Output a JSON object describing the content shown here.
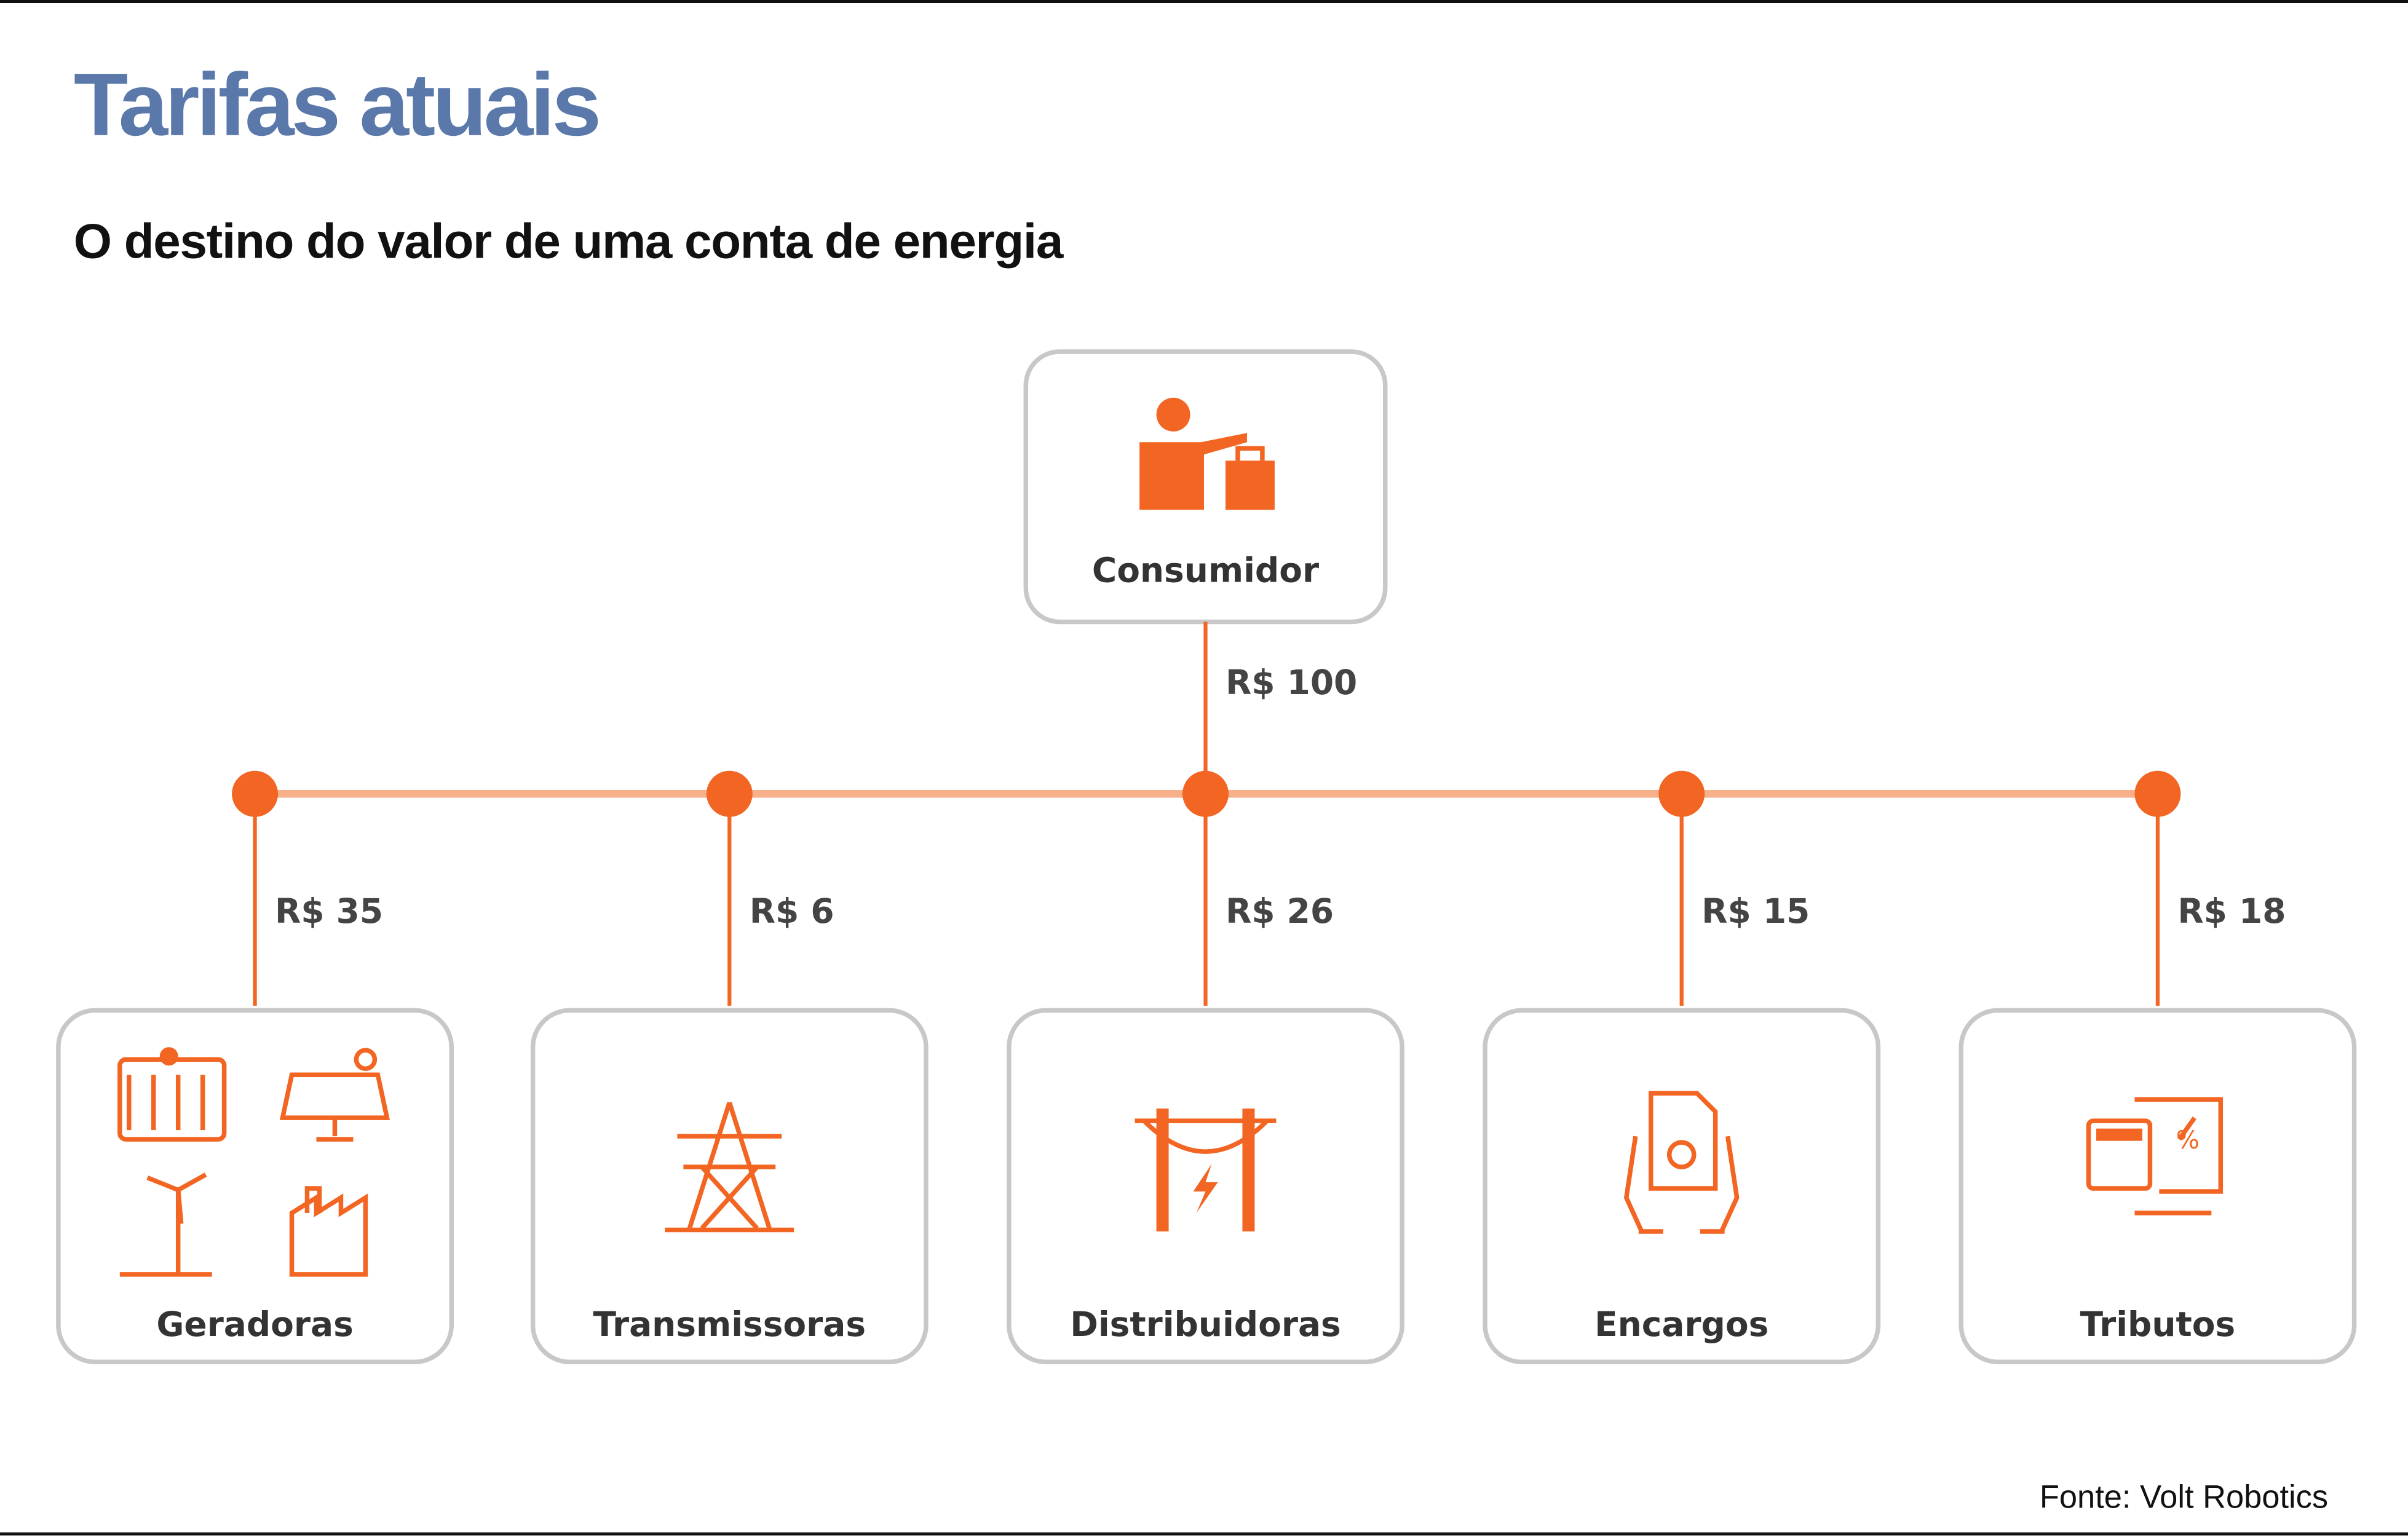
{
  "title": "Tarifas atuais",
  "subtitle": "O destino do valor de uma conta de energia",
  "accent_color": "#f26522",
  "title_color": "#5a78aa",
  "root": {
    "label": "Consumidor",
    "icon": "person-with-shopping-bag-icon",
    "amount": "R$ 100"
  },
  "destinations": [
    {
      "label": "Geradoras",
      "amount": "R$ 35",
      "icon": "power-generation-icons"
    },
    {
      "label": "Transmissoras",
      "amount": "R$ 6",
      "icon": "transmission-tower-icon"
    },
    {
      "label": "Distribuidoras",
      "amount": "R$ 26",
      "icon": "power-pole-lightning-icon"
    },
    {
      "label": "Encargos",
      "amount": "R$ 15",
      "icon": "hands-holding-document-icon"
    },
    {
      "label": "Tributos",
      "amount": "R$ 18",
      "icon": "calculator-tax-icon"
    }
  ],
  "source": "Fonte: Volt Robotics"
}
